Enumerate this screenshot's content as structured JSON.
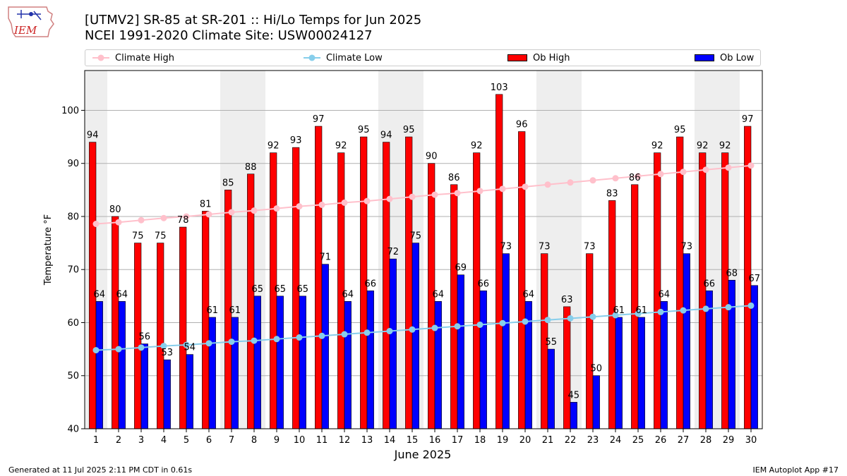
{
  "header": {
    "title_line1": "[UTMV2] SR-85 at SR-201  :: Hi/Lo Temps for Jun 2025",
    "title_line2": "NCEI 1991-2020 Climate Site: USW00024127",
    "logo_text": "IEM"
  },
  "legend": {
    "climate_high": "Climate High",
    "climate_low": "Climate Low",
    "ob_high": "Ob High",
    "ob_low": "Ob Low",
    "placement": "top, above plot"
  },
  "footer": {
    "generated": "Generated at 11 Jul 2025 2:11 PM CDT in 0.61s",
    "app": "IEM Autoplot App #17"
  },
  "colors": {
    "ob_high": "#ff0000",
    "ob_low": "#0000ff",
    "climate_high": "#ffc0cb",
    "climate_low": "#87ceeb",
    "weekend_band": "#eeeeee",
    "grid": "#b0b0b0"
  },
  "chart_data": {
    "type": "bar",
    "xlabel": "June 2025",
    "ylabel": "Temperature °F",
    "ylim": [
      40,
      107.5
    ],
    "yticks": [
      40,
      50,
      60,
      70,
      80,
      90,
      100
    ],
    "grid": "horizontal",
    "x": [
      1,
      2,
      3,
      4,
      5,
      6,
      7,
      8,
      9,
      10,
      11,
      12,
      13,
      14,
      15,
      16,
      17,
      18,
      19,
      20,
      21,
      22,
      23,
      24,
      25,
      26,
      27,
      28,
      29,
      30
    ],
    "weekend_days": [
      1,
      7,
      8,
      14,
      15,
      21,
      22,
      28,
      29
    ],
    "series": [
      {
        "name": "Ob High",
        "kind": "bar",
        "values": [
          94,
          80,
          75,
          75,
          78,
          81,
          85,
          88,
          92,
          93,
          97,
          92,
          95,
          94,
          95,
          90,
          86,
          92,
          103,
          96,
          73,
          63,
          73,
          83,
          86,
          92,
          95,
          92,
          92,
          97
        ]
      },
      {
        "name": "Ob Low",
        "kind": "bar",
        "values": [
          64,
          64,
          56,
          53,
          54,
          61,
          61,
          65,
          65,
          65,
          71,
          64,
          66,
          72,
          75,
          64,
          69,
          66,
          73,
          64,
          55,
          45,
          50,
          61,
          61,
          64,
          73,
          66,
          68,
          67
        ]
      },
      {
        "name": "Climate High",
        "kind": "line",
        "values": [
          78.6,
          78.9,
          79.3,
          79.7,
          80.0,
          80.4,
          80.8,
          81.1,
          81.5,
          81.9,
          82.2,
          82.6,
          82.9,
          83.3,
          83.7,
          84.1,
          84.4,
          84.8,
          85.2,
          85.6,
          86.0,
          86.4,
          86.8,
          87.2,
          87.6,
          88.0,
          88.4,
          88.8,
          89.2,
          89.6
        ]
      },
      {
        "name": "Climate Low",
        "kind": "line",
        "values": [
          54.8,
          55.0,
          55.3,
          55.6,
          55.8,
          56.1,
          56.4,
          56.6,
          56.9,
          57.2,
          57.5,
          57.8,
          58.1,
          58.4,
          58.7,
          59.0,
          59.3,
          59.6,
          59.9,
          60.2,
          60.5,
          60.8,
          61.1,
          61.4,
          61.7,
          62.0,
          62.3,
          62.6,
          62.9,
          63.2
        ]
      }
    ]
  }
}
